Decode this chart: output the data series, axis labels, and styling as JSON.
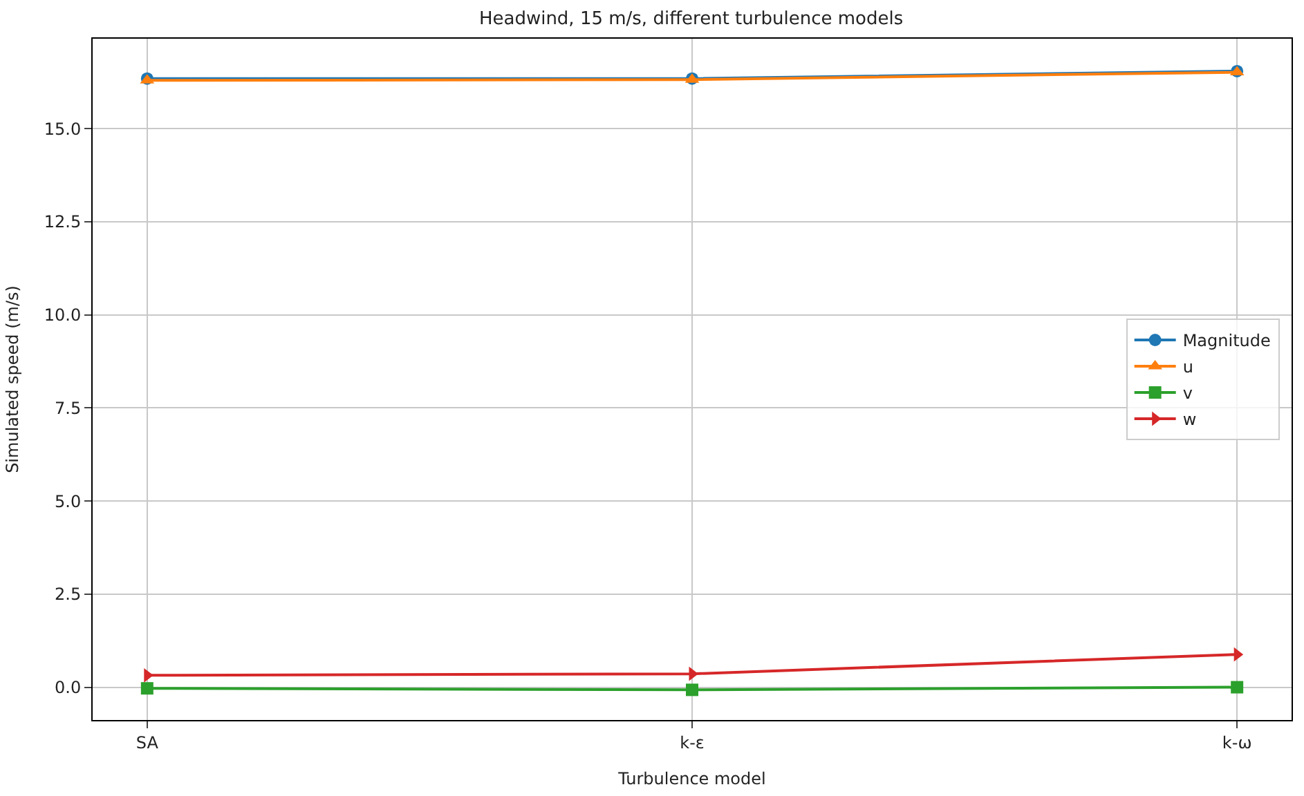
{
  "chart_data": {
    "type": "line",
    "title": "Headwind, 15 m/s, different turbulence models",
    "xlabel": "Turbulence model",
    "ylabel": "Simulated speed (m/s)",
    "categories": [
      "SA",
      "k-ε",
      "k-ω"
    ],
    "series": [
      {
        "name": "Magnitude",
        "color": "#1f77b4",
        "marker": "circle",
        "values": [
          16.35,
          16.35,
          16.55
        ]
      },
      {
        "name": "u",
        "color": "#ff7f0e",
        "marker": "triangle",
        "values": [
          16.3,
          16.32,
          16.52
        ]
      },
      {
        "name": "v",
        "color": "#2ca02c",
        "marker": "square",
        "values": [
          -0.03,
          -0.07,
          0.0
        ]
      },
      {
        "name": "w",
        "color": "#d62728",
        "marker": "triangle-right",
        "values": [
          0.32,
          0.36,
          0.88
        ]
      }
    ],
    "ylim": [
      -0.88,
      17.42
    ],
    "yticks": [
      {
        "value": 0,
        "label": "0.0"
      },
      {
        "value": 2.5,
        "label": "2.5"
      },
      {
        "value": 5,
        "label": "5.0"
      },
      {
        "value": 7.5,
        "label": "7.5"
      },
      {
        "value": 10,
        "label": "10.0"
      },
      {
        "value": 12.5,
        "label": "12.5"
      },
      {
        "value": 15,
        "label": "15.0"
      }
    ],
    "grid": true,
    "legend": "right"
  }
}
